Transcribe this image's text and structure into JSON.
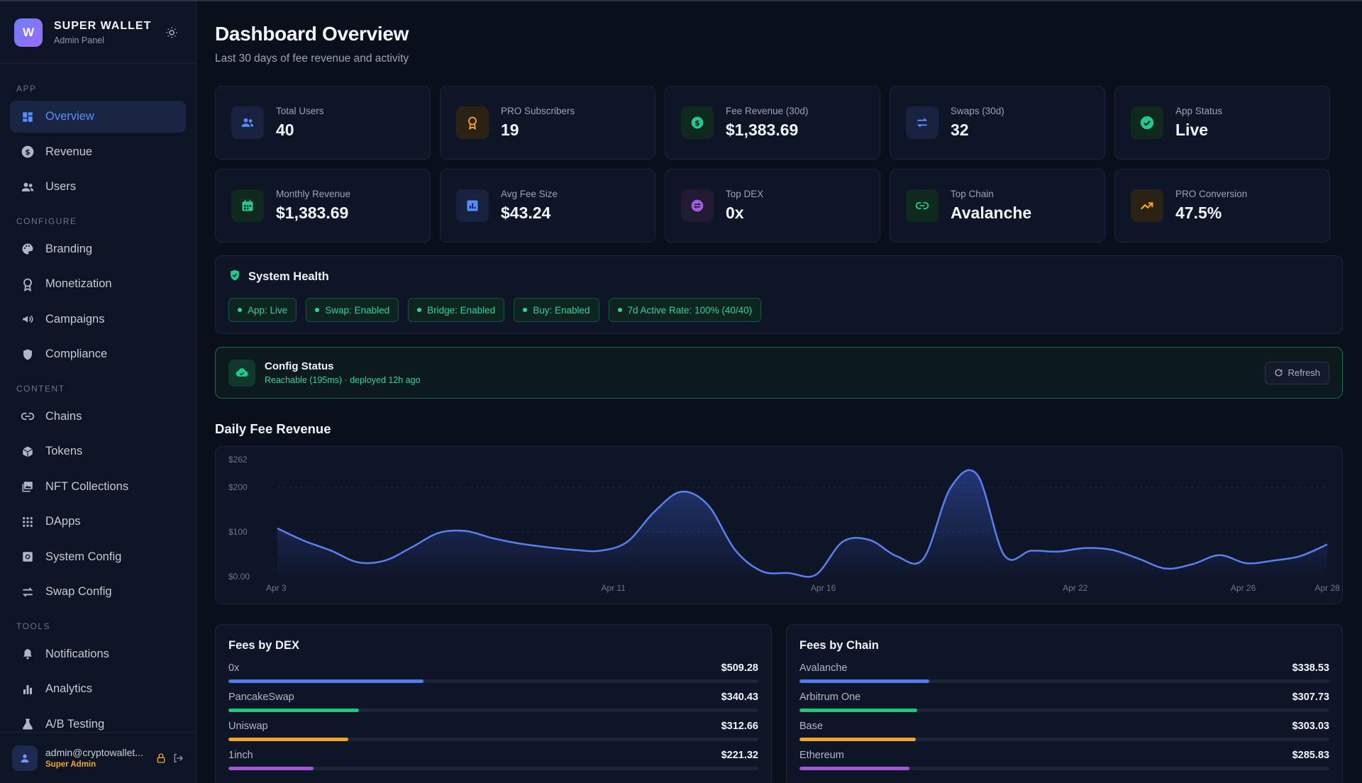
{
  "brand": {
    "title": "SUPER WALLET",
    "subtitle": "Admin Panel",
    "logo_letter": "W"
  },
  "sidebar": {
    "groups": [
      {
        "label": "APP",
        "items": [
          {
            "label": "Overview",
            "icon": "dashboard-icon",
            "active": true
          },
          {
            "label": "Revenue",
            "icon": "dollar-circle-icon"
          },
          {
            "label": "Users",
            "icon": "users-icon"
          }
        ]
      },
      {
        "label": "CONFIGURE",
        "items": [
          {
            "label": "Branding",
            "icon": "palette-icon"
          },
          {
            "label": "Monetization",
            "icon": "award-icon"
          },
          {
            "label": "Campaigns",
            "icon": "megaphone-icon"
          },
          {
            "label": "Compliance",
            "icon": "shield-icon"
          }
        ]
      },
      {
        "label": "CONTENT",
        "items": [
          {
            "label": "Chains",
            "icon": "link-icon"
          },
          {
            "label": "Tokens",
            "icon": "cube-icon"
          },
          {
            "label": "NFT Collections",
            "icon": "image-icon"
          },
          {
            "label": "DApps",
            "icon": "grid-icon"
          },
          {
            "label": "System Config",
            "icon": "settings-box-icon"
          },
          {
            "label": "Swap Config",
            "icon": "swap-icon"
          }
        ]
      },
      {
        "label": "TOOLS",
        "items": [
          {
            "label": "Notifications",
            "icon": "bell-icon"
          },
          {
            "label": "Analytics",
            "icon": "bar-chart-icon"
          },
          {
            "label": "A/B Testing",
            "icon": "flask-icon"
          }
        ]
      }
    ]
  },
  "user": {
    "email": "admin@cryptowallet...",
    "role": "Super Admin"
  },
  "header": {
    "title": "Dashboard Overview",
    "subtitle": "Last 30 days of fee revenue and activity"
  },
  "stats": [
    {
      "label": "Total Users",
      "value": "40",
      "icon": "users-icon",
      "color": "#5b8cff",
      "bg": "#18223f"
    },
    {
      "label": "PRO Subscribers",
      "value": "19",
      "icon": "award-icon",
      "color": "#f6a623",
      "bg": "#2a2214"
    },
    {
      "label": "Fee Revenue (30d)",
      "value": "$1,383.69",
      "icon": "dollar-circle-icon",
      "color": "#21c98a",
      "bg": "#10291f"
    },
    {
      "label": "Swaps (30d)",
      "value": "32",
      "icon": "swap-icon",
      "color": "#5b8cff",
      "bg": "#18223f"
    },
    {
      "label": "App Status",
      "value": "Live",
      "icon": "check-circle-icon",
      "color": "#21c98a",
      "bg": "#10291f"
    },
    {
      "label": "Monthly Revenue",
      "value": "$1,383.69",
      "icon": "calendar-icon",
      "color": "#21c98a",
      "bg": "#10291f"
    },
    {
      "label": "Avg Fee Size",
      "value": "$43.24",
      "icon": "bar-chart-box-icon",
      "color": "#5b8cff",
      "bg": "#18223f"
    },
    {
      "label": "Top DEX",
      "value": "0x",
      "icon": "swap-circle-icon",
      "color": "#a35de0",
      "bg": "#221a33"
    },
    {
      "label": "Top Chain",
      "value": "Avalanche",
      "icon": "link-icon",
      "color": "#21c98a",
      "bg": "#10291f"
    },
    {
      "label": "PRO Conversion",
      "value": "47.5%",
      "icon": "trending-up-icon",
      "color": "#f6a623",
      "bg": "#2a2214"
    }
  ],
  "health": {
    "title": "System Health",
    "chips": [
      "App: Live",
      "Swap: Enabled",
      "Bridge: Enabled",
      "Buy: Enabled",
      "7d Active Rate: 100% (40/40)"
    ]
  },
  "config": {
    "title": "Config Status",
    "status": "Reachable (195ms) · deployed 12h ago",
    "refresh_label": "Refresh"
  },
  "chart_section_title": "Daily Fee Revenue",
  "chart_data": {
    "type": "area",
    "title": "Daily Fee Revenue",
    "y_ticks": [
      "$262",
      "$200",
      "$100",
      "$0.00"
    ],
    "y_tick_values": [
      262,
      200,
      100,
      0
    ],
    "ylim": [
      0,
      262
    ],
    "x_tick_labels": [
      "Apr 3",
      "Apr 11",
      "Apr 16",
      "Apr 22",
      "Apr 26",
      "Apr 28"
    ],
    "x_tick_positions": [
      0,
      8,
      13,
      19,
      23,
      25
    ],
    "grid": true,
    "color": "#5b7ff0",
    "values": [
      108,
      80,
      58,
      32,
      36,
      66,
      98,
      102,
      86,
      74,
      66,
      60,
      58,
      78,
      145,
      190,
      160,
      60,
      12,
      8,
      4,
      78,
      82,
      46,
      40,
      198,
      228,
      48,
      58,
      56,
      64,
      60,
      40,
      18,
      28,
      48,
      30,
      36,
      46,
      72
    ]
  },
  "fees_by_dex": {
    "title": "Fees by DEX",
    "rows": [
      {
        "name": "0x",
        "value": "$509.28",
        "fraction": 0.368,
        "color": "#4e7df2"
      },
      {
        "name": "PancakeSwap",
        "value": "$340.43",
        "fraction": 0.246,
        "color": "#20c67f"
      },
      {
        "name": "Uniswap",
        "value": "$312.66",
        "fraction": 0.226,
        "color": "#f2a623"
      },
      {
        "name": "1inch",
        "value": "$221.32",
        "fraction": 0.16,
        "color": "#a157d6"
      }
    ]
  },
  "fees_by_chain": {
    "title": "Fees by Chain",
    "rows": [
      {
        "name": "Avalanche",
        "value": "$338.53",
        "fraction": 0.245,
        "color": "#4e7df2"
      },
      {
        "name": "Arbitrum One",
        "value": "$307.73",
        "fraction": 0.222,
        "color": "#20c67f"
      },
      {
        "name": "Base",
        "value": "$303.03",
        "fraction": 0.219,
        "color": "#f2a623"
      },
      {
        "name": "Ethereum",
        "value": "$285.83",
        "fraction": 0.207,
        "color": "#a157d6"
      }
    ]
  }
}
